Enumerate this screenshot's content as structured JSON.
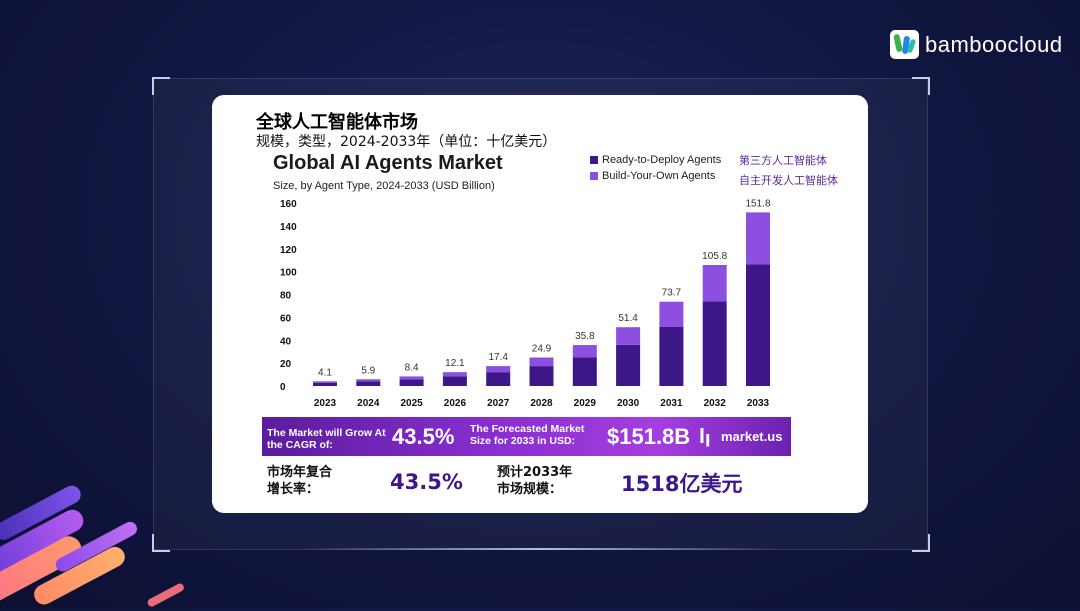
{
  "brand": {
    "name": "bamboocloud",
    "logo_icon": "bamboo-icon"
  },
  "card": {
    "cn_title": "全球人工智能体市场",
    "cn_subtitle": "规模，类型，2024-2033年（单位：十亿美元）"
  },
  "legend": [
    {
      "label": "Ready-to-Deploy Agents",
      "cn_label": "第三方人工智能体",
      "color": "#3d1687"
    },
    {
      "label": "Build-Your-Own Agents",
      "cn_label": "自主开发人工智能体",
      "color": "#8d4fe0"
    }
  ],
  "chart_data": {
    "type": "bar",
    "stacked": true,
    "title": "Global AI Agents Market",
    "subtitle": "Size, by Agent Type, 2024-2033 (USD Billion)",
    "categories": [
      "2023",
      "2024",
      "2025",
      "2026",
      "2027",
      "2028",
      "2029",
      "2030",
      "2031",
      "2032",
      "2033"
    ],
    "totals": [
      4.1,
      5.9,
      8.4,
      12.1,
      17.4,
      24.9,
      35.8,
      51.4,
      73.7,
      105.8,
      151.8
    ],
    "total_labels": [
      "4.1",
      "5.9",
      "8.4",
      "12.1",
      "17.4",
      "24.9",
      "35.8",
      "51.4",
      "73.7",
      "105.8",
      "151.8"
    ],
    "series": [
      {
        "name": "Ready-to-Deploy Agents",
        "values": [
          2.9,
          4.1,
          5.8,
          8.4,
          12.1,
          17.4,
          25.0,
          36.0,
          51.6,
          74.0,
          106.3
        ]
      },
      {
        "name": "Build-Your-Own Agents",
        "values": [
          1.2,
          1.8,
          2.6,
          3.7,
          5.3,
          7.5,
          10.8,
          15.4,
          22.1,
          31.8,
          45.5
        ]
      }
    ],
    "yticks": [
      "160",
      "140",
      "120",
      "100",
      "80",
      "60",
      "40",
      "20",
      "0"
    ],
    "ylim": [
      0,
      160
    ],
    "grid": false,
    "legend_position": "top-right"
  },
  "banner": {
    "cagr_label": "The Market will Grow At the CAGR of:",
    "cagr_value": "43.5%",
    "size_label": "The Forecasted Market Size for 2033 in USD:",
    "size_value": "$151.8B",
    "logo_text": "market.us",
    "logo_icon": "market-us-logo-icon"
  },
  "summary": {
    "cagr_label_line1": "市场年复合",
    "cagr_label_line2": "增长率：",
    "cagr_value": "43.5%",
    "size_label_line1": "预计2033年",
    "size_label_line2": "市场规模：",
    "size_value": "1518亿美元"
  },
  "colors": {
    "bar_dark": "#3d1687",
    "bar_light": "#8d4fe0",
    "accent": "#5b2ca0"
  }
}
